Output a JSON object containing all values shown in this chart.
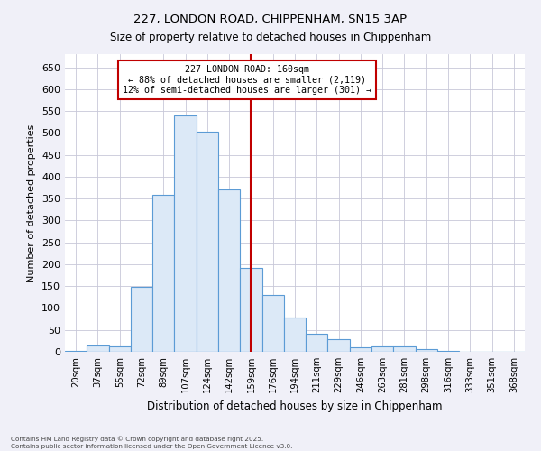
{
  "title1": "227, LONDON ROAD, CHIPPENHAM, SN15 3AP",
  "title2": "Size of property relative to detached houses in Chippenham",
  "xlabel": "Distribution of detached houses by size in Chippenham",
  "ylabel": "Number of detached properties",
  "categories": [
    "20sqm",
    "37sqm",
    "55sqm",
    "72sqm",
    "89sqm",
    "107sqm",
    "124sqm",
    "142sqm",
    "159sqm",
    "176sqm",
    "194sqm",
    "211sqm",
    "229sqm",
    "246sqm",
    "263sqm",
    "281sqm",
    "298sqm",
    "316sqm",
    "333sqm",
    "351sqm",
    "368sqm"
  ],
  "values": [
    3,
    15,
    12,
    148,
    358,
    540,
    503,
    370,
    192,
    130,
    79,
    41,
    29,
    11,
    13,
    12,
    7,
    2,
    1,
    0,
    0
  ],
  "bar_facecolor": "#dce9f7",
  "bar_edgecolor": "#5b9bd5",
  "vline_color": "#c00000",
  "vline_x_index": 8,
  "annotation_text": "227 LONDON ROAD: 160sqm\n← 88% of detached houses are smaller (2,119)\n12% of semi-detached houses are larger (301) →",
  "annotation_box_facecolor": "#ffffff",
  "annotation_box_edgecolor": "#c00000",
  "ylim": [
    0,
    680
  ],
  "yticks": [
    0,
    50,
    100,
    150,
    200,
    250,
    300,
    350,
    400,
    450,
    500,
    550,
    600,
    650
  ],
  "bg_color": "#f0f0f8",
  "plot_bg_color": "#ffffff",
  "grid_color": "#c8c8d8",
  "footer1": "Contains HM Land Registry data © Crown copyright and database right 2025.",
  "footer2": "Contains public sector information licensed under the Open Government Licence v3.0.",
  "title1_fontsize": 9.5,
  "title2_fontsize": 8.5
}
